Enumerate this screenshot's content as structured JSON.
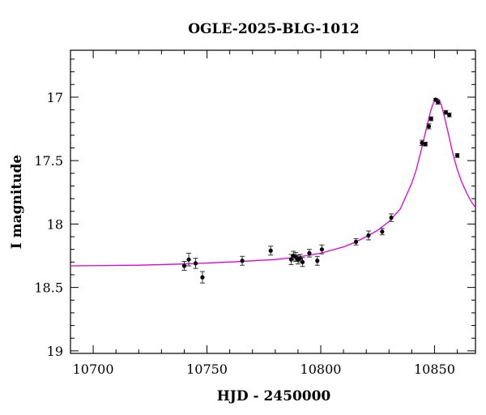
{
  "chart_data": {
    "type": "scatter",
    "title": "OGLE-2025-BLG-1012",
    "xlabel": "HJD - 2450000",
    "ylabel": "I magnitude",
    "xlim": [
      10690,
      10868
    ],
    "ylim": [
      19.02,
      16.63
    ],
    "y_inverted": true,
    "grid": false,
    "x_ticks": [
      10700,
      10750,
      10800,
      10850
    ],
    "y_ticks": [
      17,
      17.5,
      18,
      18.5,
      19
    ],
    "x_tick_labels": [
      "10700",
      "10750",
      "10800",
      "10850"
    ],
    "y_tick_labels": [
      "17",
      "17.5",
      "18",
      "18.5",
      "19"
    ],
    "x_minor_step": 10,
    "y_minor_step": 0.1,
    "colors": {
      "model": "#e000e0",
      "points": "#000000",
      "errorbars": "#333333"
    },
    "series": [
      {
        "kind": "points",
        "x": [
          10740.0,
          10742.0,
          10745.0,
          10748.0,
          10765.5,
          10778.0,
          10787.0,
          10788.0,
          10789.0,
          10790.0,
          10791.0,
          10792.0,
          10795.0,
          10798.5,
          10800.5,
          10815.5,
          10821.0,
          10827.0,
          10831.0,
          10844.5,
          10846.0,
          10847.5,
          10848.5,
          10850.5,
          10851.5,
          10855.0,
          10856.5,
          10860.0
        ],
        "y": [
          18.33,
          18.28,
          18.31,
          18.42,
          18.29,
          18.21,
          18.28,
          18.25,
          18.26,
          18.28,
          18.27,
          18.3,
          18.23,
          18.29,
          18.2,
          18.14,
          18.09,
          18.06,
          17.95,
          17.36,
          17.37,
          17.23,
          17.17,
          17.02,
          17.04,
          17.12,
          17.14,
          17.46
        ],
        "err": [
          0.035,
          0.05,
          0.04,
          0.045,
          0.035,
          0.035,
          0.04,
          0.035,
          0.035,
          0.035,
          0.03,
          0.035,
          0.03,
          0.035,
          0.035,
          0.025,
          0.035,
          0.025,
          0.03,
          0.02,
          0.015,
          0.02,
          0.015,
          0.01,
          0.015,
          0.015,
          0.015,
          0.015
        ]
      },
      {
        "kind": "model",
        "x": [
          10690,
          10720,
          10740,
          10760,
          10780,
          10790,
          10800,
          10810,
          10815,
          10820,
          10825,
          10830,
          10835,
          10840,
          10842,
          10844,
          10846,
          10848,
          10849,
          10850,
          10851,
          10852,
          10853,
          10854,
          10856,
          10858,
          10860,
          10862,
          10864,
          10866,
          10868
        ],
        "y": [
          18.33,
          18.325,
          18.315,
          18.3,
          18.28,
          18.26,
          18.23,
          18.18,
          18.145,
          18.1,
          18.05,
          17.98,
          17.88,
          17.68,
          17.57,
          17.43,
          17.28,
          17.13,
          17.07,
          17.03,
          17.01,
          17.02,
          17.06,
          17.13,
          17.28,
          17.44,
          17.57,
          17.67,
          17.75,
          17.82,
          17.87
        ]
      }
    ]
  }
}
